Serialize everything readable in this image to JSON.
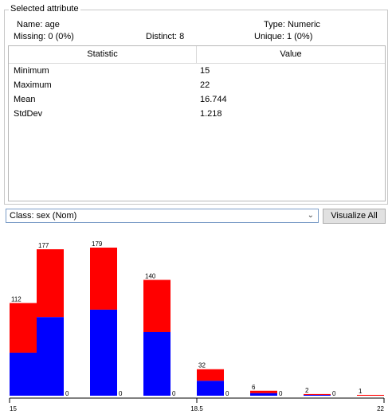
{
  "selected_attribute": {
    "legend": "Selected attribute",
    "name_text": "Name: age",
    "type_text": "Type: Numeric",
    "missing_text": "Missing: 0 (0%)",
    "distinct_text": "Distinct: 8",
    "unique_text": "Unique: 1 (0%)"
  },
  "stats_table": {
    "headers": [
      "Statistic",
      "Value"
    ],
    "rows": [
      {
        "statistic": "Minimum",
        "value": "15"
      },
      {
        "statistic": "Maximum",
        "value": "22"
      },
      {
        "statistic": "Mean",
        "value": "16.744"
      },
      {
        "statistic": "StdDev",
        "value": "1.218"
      }
    ]
  },
  "class_select": {
    "value": "Class: sex (Nom)",
    "icon": "chevron-down-icon"
  },
  "visualize_all_label": "Visualize All",
  "colors": {
    "blue": "#0000ff",
    "red": "#ff0000"
  },
  "chart_data": {
    "type": "bar",
    "stacked": true,
    "x_tick_labels": [
      "15",
      "18.5",
      "22"
    ],
    "totals": [
      112,
      177,
      179,
      140,
      32,
      6,
      2,
      1
    ],
    "side_labels": [
      "",
      "0",
      "0",
      "0",
      "0",
      "0",
      "0",
      ""
    ],
    "series": [
      {
        "color": "#0000ff",
        "values": [
          52,
          95,
          104,
          77,
          18,
          3,
          1,
          0
        ]
      },
      {
        "color": "#ff0000",
        "values": [
          60,
          82,
          75,
          63,
          14,
          3,
          1,
          1
        ]
      }
    ],
    "ylim": [
      0,
      179
    ]
  }
}
